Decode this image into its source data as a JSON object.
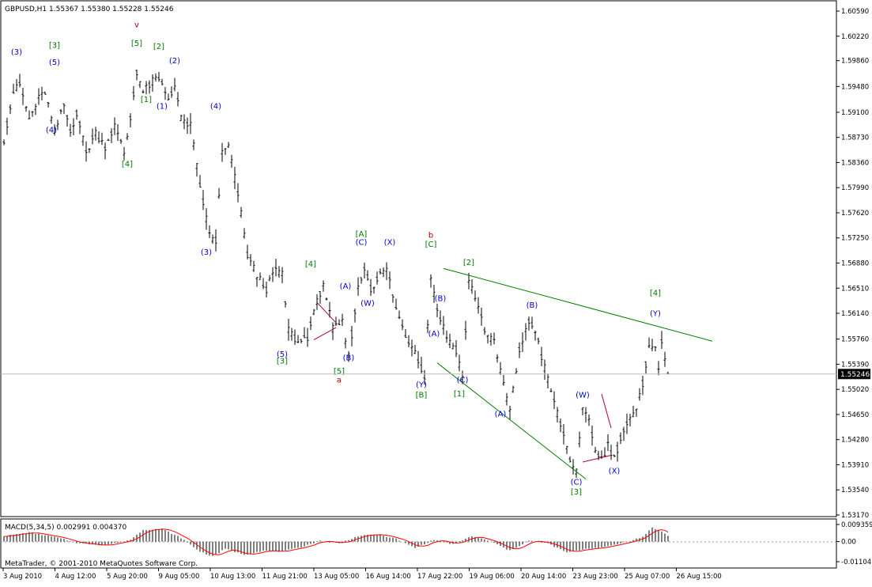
{
  "header": {
    "symbol_line": "GBPUSD,H1  1.55367 1.55380 1.55228 1.55246"
  },
  "footer": {
    "copyright": "MetaTrader, © 2001-2010 MetaQuotes Software Corp."
  },
  "colors": {
    "bars": "#000000",
    "blue_labels": "#0000cc",
    "green_labels": "#007700",
    "red_labels": "#aa0000",
    "trend_green": "#008000",
    "trend_red": "#b00020",
    "macd_signal": "#ff0000",
    "grid_line": "#bdbdbd"
  },
  "chart_data": [
    {
      "type": "candlestick",
      "symbol": "GBPUSD",
      "timeframe": "H1",
      "last_price_label": "1.55246",
      "ylim": [
        1.5317,
        1.6059
      ],
      "y_ticks": [
        "1.60590",
        "1.60220",
        "1.59860",
        "1.59480",
        "1.59100",
        "1.58730",
        "1.58360",
        "1.57990",
        "1.57620",
        "1.57250",
        "1.56880",
        "1.56510",
        "1.56140",
        "1.55760",
        "1.55390",
        "1.55020",
        "1.54650",
        "1.54280",
        "1.53910",
        "1.53540",
        "1.53170"
      ],
      "x_ticks": [
        "3 Aug 2010",
        "4 Aug 12:00",
        "5 Aug 20:00",
        "9 Aug 05:00",
        "10 Aug 13:00",
        "11 Aug 21:00",
        "13 Aug 05:00",
        "16 Aug 14:00",
        "17 Aug 22:00",
        "19 Aug 06:00",
        "20 Aug 14:00",
        "23 Aug 23:00",
        "25 Aug 07:00",
        "26 Aug 15:00"
      ],
      "anchors": [
        {
          "t": 0,
          "p": 1.587
        },
        {
          "t": 3,
          "p": 1.594
        },
        {
          "t": 5,
          "p": 1.595
        },
        {
          "t": 8,
          "p": 1.59
        },
        {
          "t": 11,
          "p": 1.593
        },
        {
          "t": 13,
          "p": 1.594
        },
        {
          "t": 16,
          "p": 1.588
        },
        {
          "t": 19,
          "p": 1.592
        },
        {
          "t": 21,
          "p": 1.588
        },
        {
          "t": 23,
          "p": 1.591
        },
        {
          "t": 26,
          "p": 1.585
        },
        {
          "t": 29,
          "p": 1.588
        },
        {
          "t": 32,
          "p": 1.586
        },
        {
          "t": 35,
          "p": 1.589
        },
        {
          "t": 38,
          "p": 1.585
        },
        {
          "t": 40,
          "p": 1.59
        },
        {
          "t": 42,
          "p": 1.597
        },
        {
          "t": 44,
          "p": 1.594
        },
        {
          "t": 46,
          "p": 1.595
        },
        {
          "t": 48,
          "p": 1.596
        },
        {
          "t": 50,
          "p": 1.595
        },
        {
          "t": 52,
          "p": 1.593
        },
        {
          "t": 54,
          "p": 1.595
        },
        {
          "t": 56,
          "p": 1.59
        },
        {
          "t": 59,
          "p": 1.589
        },
        {
          "t": 62,
          "p": 1.58
        },
        {
          "t": 65,
          "p": 1.573
        },
        {
          "t": 67,
          "p": 1.572
        },
        {
          "t": 69,
          "p": 1.585
        },
        {
          "t": 71,
          "p": 1.586
        },
        {
          "t": 74,
          "p": 1.579
        },
        {
          "t": 77,
          "p": 1.57
        },
        {
          "t": 80,
          "p": 1.567
        },
        {
          "t": 83,
          "p": 1.565
        },
        {
          "t": 86,
          "p": 1.568
        },
        {
          "t": 88,
          "p": 1.567
        },
        {
          "t": 90,
          "p": 1.559
        },
        {
          "t": 93,
          "p": 1.557
        },
        {
          "t": 96,
          "p": 1.558
        },
        {
          "t": 99,
          "p": 1.563
        },
        {
          "t": 101,
          "p": 1.566
        },
        {
          "t": 104,
          "p": 1.559
        },
        {
          "t": 107,
          "p": 1.56
        },
        {
          "t": 109,
          "p": 1.555
        },
        {
          "t": 112,
          "p": 1.565
        },
        {
          "t": 114,
          "p": 1.568
        },
        {
          "t": 116,
          "p": 1.565
        },
        {
          "t": 119,
          "p": 1.567
        },
        {
          "t": 121,
          "p": 1.568
        },
        {
          "t": 124,
          "p": 1.562
        },
        {
          "t": 127,
          "p": 1.558
        },
        {
          "t": 130,
          "p": 1.556
        },
        {
          "t": 133,
          "p": 1.552
        },
        {
          "t": 135,
          "p": 1.567
        },
        {
          "t": 137,
          "p": 1.562
        },
        {
          "t": 140,
          "p": 1.558
        },
        {
          "t": 143,
          "p": 1.556
        },
        {
          "t": 145,
          "p": 1.552
        },
        {
          "t": 147,
          "p": 1.566
        },
        {
          "t": 149,
          "p": 1.564
        },
        {
          "t": 152,
          "p": 1.559
        },
        {
          "t": 155,
          "p": 1.557
        },
        {
          "t": 158,
          "p": 1.551
        },
        {
          "t": 160,
          "p": 1.547
        },
        {
          "t": 163,
          "p": 1.556
        },
        {
          "t": 166,
          "p": 1.56
        },
        {
          "t": 168,
          "p": 1.559
        },
        {
          "t": 170,
          "p": 1.555
        },
        {
          "t": 173,
          "p": 1.55
        },
        {
          "t": 176,
          "p": 1.545
        },
        {
          "t": 179,
          "p": 1.54
        },
        {
          "t": 181,
          "p": 1.538
        },
        {
          "t": 183,
          "p": 1.547
        },
        {
          "t": 185,
          "p": 1.546
        },
        {
          "t": 187,
          "p": 1.541
        },
        {
          "t": 189,
          "p": 1.54
        },
        {
          "t": 191,
          "p": 1.542
        },
        {
          "t": 193,
          "p": 1.54
        },
        {
          "t": 195,
          "p": 1.543
        },
        {
          "t": 197,
          "p": 1.545
        },
        {
          "t": 200,
          "p": 1.547
        },
        {
          "t": 202,
          "p": 1.551
        },
        {
          "t": 204,
          "p": 1.557
        },
        {
          "t": 206,
          "p": 1.556
        },
        {
          "t": 207,
          "p": 1.553
        },
        {
          "t": 208,
          "p": 1.557
        },
        {
          "t": 210,
          "p": 1.553
        }
      ],
      "trendlines": [
        {
          "color": "green",
          "t1": 139,
          "p1": 1.568,
          "t2": 224,
          "p2": 1.5573
        },
        {
          "color": "green",
          "t1": 137,
          "p1": 1.5541,
          "t2": 184,
          "p2": 1.537
        },
        {
          "color": "red",
          "t1": 99,
          "p1": 1.563,
          "t2": 105,
          "p2": 1.56
        },
        {
          "color": "red",
          "t1": 98,
          "p1": 1.5575,
          "t2": 105,
          "p2": 1.5593
        },
        {
          "color": "red",
          "t1": 183,
          "p1": 1.5395,
          "t2": 192,
          "p2": 1.5405
        },
        {
          "color": "red",
          "t1": 189,
          "p1": 1.5495,
          "t2": 192,
          "p2": 1.5445
        }
      ],
      "wave_labels": [
        {
          "text": "(3)",
          "color": "blue",
          "t": 4,
          "p": 1.5995
        },
        {
          "text": "[3]",
          "color": "green",
          "t": 16,
          "p": 1.6005
        },
        {
          "text": "(5)",
          "color": "blue",
          "t": 16,
          "p": 1.598
        },
        {
          "text": "(4)",
          "color": "blue",
          "t": 15,
          "p": 1.588
        },
        {
          "text": "[4]",
          "color": "green",
          "t": 39,
          "p": 1.583
        },
        {
          "text": "v",
          "color": "red",
          "t": 42,
          "p": 1.6035
        },
        {
          "text": "[5]",
          "color": "green",
          "t": 42,
          "p": 1.6008
        },
        {
          "text": "[2]",
          "color": "green",
          "t": 49,
          "p": 1.6003
        },
        {
          "text": "(2)",
          "color": "blue",
          "t": 54,
          "p": 1.5982
        },
        {
          "text": "[1]",
          "color": "green",
          "t": 45,
          "p": 1.5925
        },
        {
          "text": "(1)",
          "color": "blue",
          "t": 50,
          "p": 1.5915
        },
        {
          "text": "(4)",
          "color": "blue",
          "t": 67,
          "p": 1.5915
        },
        {
          "text": "(3)",
          "color": "blue",
          "t": 64,
          "p": 1.57
        },
        {
          "text": "[4]",
          "color": "green",
          "t": 97,
          "p": 1.5683
        },
        {
          "text": "(A)",
          "color": "blue",
          "t": 108,
          "p": 1.565
        },
        {
          "text": "[A]",
          "color": "green",
          "t": 113,
          "p": 1.5727
        },
        {
          "text": "(C)",
          "color": "blue",
          "t": 113,
          "p": 1.5715
        },
        {
          "text": "(X)",
          "color": "blue",
          "t": 122,
          "p": 1.5715
        },
        {
          "text": "(W)",
          "color": "blue",
          "t": 115,
          "p": 1.5625
        },
        {
          "text": "(5)",
          "color": "blue",
          "t": 88,
          "p": 1.555
        },
        {
          "text": "[3]",
          "color": "green",
          "t": 88,
          "p": 1.554
        },
        {
          "text": "(B)",
          "color": "blue",
          "t": 109,
          "p": 1.5545
        },
        {
          "text": "[5]",
          "color": "green",
          "t": 106,
          "p": 1.5525
        },
        {
          "text": "a",
          "color": "red",
          "t": 106,
          "p": 1.5512
        },
        {
          "text": "b",
          "color": "red",
          "t": 135,
          "p": 1.5725
        },
        {
          "text": "[C]",
          "color": "green",
          "t": 135,
          "p": 1.5712
        },
        {
          "text": "[2]",
          "color": "green",
          "t": 147,
          "p": 1.5685
        },
        {
          "text": "(B)",
          "color": "blue",
          "t": 138,
          "p": 1.5632
        },
        {
          "text": "(A)",
          "color": "blue",
          "t": 136,
          "p": 1.558
        },
        {
          "text": "(Y)",
          "color": "blue",
          "t": 132,
          "p": 1.5505
        },
        {
          "text": "[B]",
          "color": "green",
          "t": 132,
          "p": 1.549
        },
        {
          "text": "(C)",
          "color": "blue",
          "t": 145,
          "p": 1.5512
        },
        {
          "text": "[1]",
          "color": "green",
          "t": 144,
          "p": 1.5492
        },
        {
          "text": "(B)",
          "color": "blue",
          "t": 167,
          "p": 1.5622
        },
        {
          "text": "(A)",
          "color": "blue",
          "t": 157,
          "p": 1.5462
        },
        {
          "text": "(W)",
          "color": "blue",
          "t": 183,
          "p": 1.549
        },
        {
          "text": "(C)",
          "color": "blue",
          "t": 181,
          "p": 1.5362
        },
        {
          "text": "[3]",
          "color": "green",
          "t": 181,
          "p": 1.5347
        },
        {
          "text": "(X)",
          "color": "blue",
          "t": 193,
          "p": 1.5378
        },
        {
          "text": "[4]",
          "color": "green",
          "t": 206,
          "p": 1.564
        },
        {
          "text": "(Y)",
          "color": "blue",
          "t": 206,
          "p": 1.561
        }
      ]
    },
    {
      "type": "bar",
      "indicator": "MACD",
      "label": "MACD(5,34,5) 0.002991 0.004370",
      "ylim": [
        -0.01104,
        0.009359
      ],
      "y_ticks": [
        "0.009359",
        "0.00",
        "-0.01104"
      ],
      "anchors": [
        {
          "t": 0,
          "v": 0.003
        },
        {
          "t": 8,
          "v": 0.005
        },
        {
          "t": 16,
          "v": 0.0025
        },
        {
          "t": 24,
          "v": -0.001
        },
        {
          "t": 32,
          "v": -0.002
        },
        {
          "t": 40,
          "v": 0.001
        },
        {
          "t": 44,
          "v": 0.0065
        },
        {
          "t": 50,
          "v": 0.007
        },
        {
          "t": 56,
          "v": 0.002
        },
        {
          "t": 62,
          "v": -0.0055
        },
        {
          "t": 66,
          "v": -0.0082
        },
        {
          "t": 70,
          "v": -0.004
        },
        {
          "t": 76,
          "v": -0.0072
        },
        {
          "t": 82,
          "v": -0.005
        },
        {
          "t": 88,
          "v": -0.0055
        },
        {
          "t": 94,
          "v": -0.003
        },
        {
          "t": 100,
          "v": 0.0005
        },
        {
          "t": 106,
          "v": -0.001
        },
        {
          "t": 112,
          "v": 0.003
        },
        {
          "t": 118,
          "v": 0.004
        },
        {
          "t": 124,
          "v": 0.0015
        },
        {
          "t": 130,
          "v": -0.0035
        },
        {
          "t": 136,
          "v": 0.001
        },
        {
          "t": 142,
          "v": -0.0015
        },
        {
          "t": 148,
          "v": 0.003
        },
        {
          "t": 154,
          "v": 0.0
        },
        {
          "t": 160,
          "v": -0.005
        },
        {
          "t": 166,
          "v": 0.0005
        },
        {
          "t": 172,
          "v": -0.001
        },
        {
          "t": 178,
          "v": -0.006
        },
        {
          "t": 184,
          "v": -0.004
        },
        {
          "t": 190,
          "v": -0.003
        },
        {
          "t": 196,
          "v": -0.0005
        },
        {
          "t": 202,
          "v": 0.0025
        },
        {
          "t": 205,
          "v": 0.0078
        },
        {
          "t": 208,
          "v": 0.0055
        },
        {
          "t": 210,
          "v": 0.003
        }
      ]
    }
  ]
}
